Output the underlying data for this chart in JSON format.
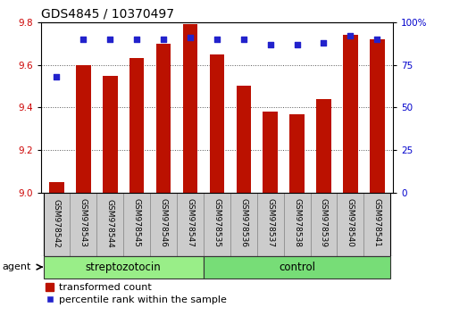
{
  "title": "GDS4845 / 10370497",
  "samples": [
    "GSM978542",
    "GSM978543",
    "GSM978544",
    "GSM978545",
    "GSM978546",
    "GSM978547",
    "GSM978535",
    "GSM978536",
    "GSM978537",
    "GSM978538",
    "GSM978539",
    "GSM978540",
    "GSM978541"
  ],
  "bar_values": [
    9.05,
    9.6,
    9.55,
    9.63,
    9.7,
    9.79,
    9.65,
    9.5,
    9.38,
    9.37,
    9.44,
    9.74,
    9.72
  ],
  "percentile_values": [
    68,
    90,
    90,
    90,
    90,
    91,
    90,
    90,
    87,
    87,
    88,
    92,
    90
  ],
  "bar_color": "#bb1100",
  "dot_color": "#2222cc",
  "ylim": [
    9.0,
    9.8
  ],
  "y2lim": [
    0,
    100
  ],
  "yticks": [
    9.0,
    9.2,
    9.4,
    9.6,
    9.8
  ],
  "y2ticks": [
    0,
    25,
    50,
    75,
    100
  ],
  "y2ticklabels": [
    "0",
    "25",
    "50",
    "75",
    "100%"
  ],
  "groups": [
    {
      "label": "streptozotocin",
      "start": 0,
      "end": 6,
      "color": "#99ee88"
    },
    {
      "label": "control",
      "start": 6,
      "end": 13,
      "color": "#77dd77"
    }
  ],
  "agent_label": "agent",
  "legend_bar_label": "transformed count",
  "legend_dot_label": "percentile rank within the sample",
  "bar_width": 0.55,
  "y_tick_color": "#cc0000",
  "y2_tick_color": "#0000cc",
  "title_fontsize": 10,
  "tick_fontsize": 7.5,
  "sample_fontsize": 6.5,
  "legend_fontsize": 8,
  "group_label_fontsize": 8.5,
  "background_color": "#ffffff",
  "plot_bg_color": "#ffffff",
  "grid_color": "#555555",
  "sample_box_color": "#cccccc",
  "sample_box_edge": "#888888"
}
